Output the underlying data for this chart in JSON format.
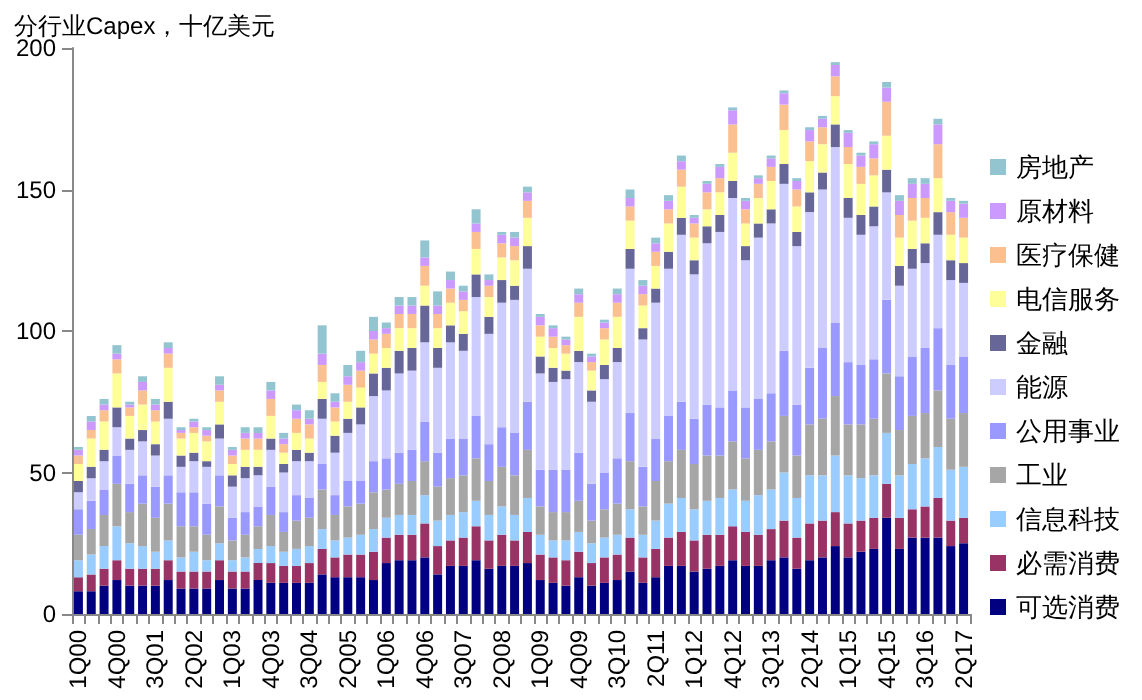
{
  "chart_data": {
    "type": "bar",
    "title": "分行业Capex，十亿美元",
    "stacked": true,
    "legend": "right",
    "ylim": [
      0,
      200
    ],
    "yticks": [
      0,
      50,
      100,
      150,
      200
    ],
    "categories": [
      "1Q00",
      null,
      null,
      "4Q00",
      null,
      null,
      "3Q01",
      null,
      null,
      "2Q02",
      null,
      null,
      "1Q03",
      null,
      null,
      "4Q03",
      null,
      null,
      "3Q04",
      null,
      null,
      "2Q05",
      null,
      null,
      "1Q06",
      null,
      null,
      "4Q06",
      null,
      null,
      "3Q07",
      null,
      null,
      "2Q08",
      null,
      null,
      "1Q09",
      null,
      null,
      "4Q09",
      null,
      null,
      "3Q10",
      null,
      null,
      "2Q11",
      null,
      null,
      "1Q12",
      null,
      null,
      "4Q12",
      null,
      null,
      "3Q13",
      null,
      null,
      "2Q14",
      null,
      null,
      "1Q15",
      null,
      null,
      "4Q15",
      null,
      null,
      "3Q16",
      null,
      null,
      "2Q17"
    ],
    "series": [
      {
        "name": "可选消费",
        "color": "#000080",
        "values": [
          8,
          8,
          10,
          12,
          10,
          10,
          10,
          12,
          9,
          9,
          9,
          12,
          9,
          9,
          12,
          11,
          11,
          11,
          11,
          14,
          13,
          13,
          13,
          12,
          18,
          19,
          19,
          20,
          14,
          17,
          17,
          19,
          16,
          17,
          17,
          18,
          12,
          11,
          10,
          13,
          10,
          11,
          12,
          15,
          11,
          13,
          17,
          17,
          15,
          16,
          17,
          19,
          17,
          17,
          19,
          20,
          16,
          19,
          20,
          24,
          20,
          22,
          23,
          34,
          23,
          27,
          27,
          27,
          24,
          25
        ]
      },
      {
        "name": "必需消费",
        "color": "#993366",
        "values": [
          5,
          6,
          6,
          7,
          6,
          6,
          6,
          7,
          6,
          6,
          6,
          7,
          6,
          6,
          6,
          7,
          6,
          6,
          7,
          9,
          7,
          8,
          8,
          10,
          9,
          9,
          9,
          12,
          10,
          9,
          10,
          12,
          10,
          11,
          9,
          11,
          9,
          9,
          9,
          9,
          8,
          9,
          9,
          12,
          9,
          10,
          10,
          12,
          11,
          12,
          11,
          12,
          12,
          11,
          11,
          13,
          11,
          13,
          13,
          12,
          12,
          11,
          11,
          12,
          11,
          10,
          11,
          14,
          9,
          9
        ]
      },
      {
        "name": "信息科技",
        "color": "#99ccff",
        "values": [
          6,
          7,
          8,
          12,
          9,
          8,
          6,
          7,
          5,
          7,
          4,
          6,
          4,
          5,
          5,
          6,
          5,
          6,
          6,
          7,
          6,
          6,
          7,
          8,
          7,
          7,
          7,
          10,
          9,
          9,
          9,
          9,
          9,
          10,
          9,
          12,
          7,
          6,
          7,
          7,
          7,
          7,
          7,
          10,
          8,
          10,
          12,
          12,
          11,
          12,
          13,
          13,
          11,
          14,
          14,
          17,
          14,
          17,
          16,
          20,
          17,
          15,
          15,
          18,
          15,
          16,
          17,
          18,
          18,
          18
        ]
      },
      {
        "name": "工业",
        "color": "#a6a6a6",
        "values": [
          9,
          9,
          11,
          15,
          11,
          15,
          12,
          13,
          11,
          9,
          9,
          13,
          7,
          8,
          8,
          11,
          7,
          10,
          10,
          14,
          9,
          11,
          11,
          13,
          10,
          11,
          12,
          12,
          12,
          13,
          13,
          15,
          12,
          14,
          14,
          17,
          10,
          10,
          10,
          11,
          8,
          10,
          11,
          17,
          10,
          14,
          15,
          17,
          16,
          16,
          15,
          17,
          15,
          16,
          17,
          20,
          15,
          18,
          20,
          21,
          18,
          19,
          20,
          21,
          16,
          17,
          16,
          20,
          18,
          19
        ]
      },
      {
        "name": "公用事业",
        "color": "#9999ff",
        "values": [
          9,
          10,
          9,
          10,
          10,
          10,
          11,
          10,
          12,
          12,
          11,
          11,
          8,
          8,
          7,
          10,
          7,
          9,
          7,
          9,
          7,
          9,
          8,
          11,
          11,
          11,
          11,
          14,
          12,
          14,
          13,
          15,
          13,
          14,
          15,
          17,
          13,
          15,
          15,
          17,
          13,
          13,
          16,
          17,
          14,
          15,
          16,
          17,
          16,
          18,
          17,
          18,
          18,
          18,
          17,
          23,
          18,
          20,
          25,
          26,
          22,
          21,
          21,
          26,
          19,
          21,
          23,
          22,
          19,
          20
        ]
      },
      {
        "name": "能源",
        "color": "#ccccff",
        "values": [
          6,
          8,
          10,
          10,
          12,
          12,
          11,
          20,
          9,
          11,
          13,
          13,
          11,
          12,
          11,
          13,
          14,
          12,
          13,
          16,
          15,
          17,
          20,
          23,
          24,
          28,
          28,
          28,
          30,
          34,
          31,
          42,
          39,
          44,
          47,
          47,
          34,
          31,
          32,
          32,
          29,
          33,
          34,
          51,
          45,
          48,
          52,
          59,
          51,
          57,
          62,
          68,
          52,
          57,
          60,
          59,
          56,
          55,
          56,
          62,
          51,
          46,
          47,
          38,
          32,
          31,
          30,
          33,
          30,
          26
        ]
      },
      {
        "name": "金融",
        "color": "#666699",
        "values": [
          4,
          4,
          4,
          7,
          4,
          4,
          4,
          6,
          4,
          3,
          2,
          5,
          4,
          4,
          3,
          4,
          3,
          4,
          3,
          7,
          6,
          5,
          6,
          8,
          8,
          8,
          8,
          13,
          7,
          6,
          6,
          8,
          6,
          8,
          5,
          8,
          6,
          5,
          3,
          4,
          4,
          5,
          5,
          7,
          4,
          5,
          6,
          6,
          5,
          6,
          6,
          6,
          5,
          5,
          5,
          7,
          5,
          7,
          6,
          8,
          7,
          7,
          7,
          8,
          7,
          7,
          7,
          8,
          7,
          7
        ]
      },
      {
        "name": "电信服务",
        "color": "#ffff99",
        "values": [
          6,
          10,
          10,
          12,
          8,
          9,
          8,
          12,
          6,
          7,
          7,
          8,
          4,
          6,
          6,
          8,
          4,
          6,
          5,
          6,
          5,
          6,
          7,
          7,
          7,
          8,
          7,
          7,
          7,
          8,
          8,
          9,
          7,
          8,
          9,
          10,
          7,
          7,
          6,
          12,
          7,
          9,
          11,
          10,
          8,
          8,
          10,
          11,
          8,
          6,
          8,
          10,
          8,
          9,
          10,
          12,
          9,
          11,
          10,
          10,
          12,
          11,
          11,
          12,
          10,
          10,
          9,
          12,
          9,
          9
        ]
      },
      {
        "name": "医疗保健",
        "color": "#fac090",
        "values": [
          3,
          3,
          4,
          5,
          3,
          5,
          4,
          5,
          2,
          2,
          2,
          4,
          3,
          4,
          4,
          6,
          3,
          5,
          5,
          6,
          5,
          6,
          6,
          5,
          5,
          5,
          5,
          7,
          5,
          5,
          4,
          6,
          4,
          5,
          5,
          6,
          4,
          4,
          3,
          5,
          3,
          4,
          5,
          5,
          4,
          5,
          5,
          6,
          5,
          6,
          5,
          10,
          5,
          5,
          5,
          9,
          6,
          7,
          6,
          7,
          6,
          6,
          6,
          12,
          8,
          8,
          7,
          12,
          8,
          7
        ]
      },
      {
        "name": "原材料",
        "color": "#cc99ff",
        "values": [
          2,
          3,
          2,
          2,
          1,
          3,
          2,
          2,
          1,
          2,
          2,
          2,
          2,
          2,
          2,
          3,
          2,
          3,
          2,
          4,
          2,
          3,
          3,
          3,
          2,
          3,
          3,
          3,
          3,
          3,
          3,
          3,
          2,
          3,
          3,
          3,
          3,
          3,
          2,
          3,
          2,
          2,
          3,
          3,
          3,
          3,
          3,
          3,
          2,
          3,
          4,
          5,
          3,
          2,
          3,
          4,
          3,
          4,
          3,
          4,
          5,
          4,
          5,
          5,
          5,
          5,
          5,
          7,
          4,
          5
        ]
      },
      {
        "name": "房地产",
        "color": "#92c5d0",
        "values": [
          1,
          2,
          2,
          3,
          1,
          2,
          2,
          2,
          1,
          1,
          1,
          3,
          1,
          2,
          2,
          3,
          2,
          2,
          3,
          10,
          3,
          4,
          4,
          5,
          2,
          3,
          3,
          6,
          5,
          3,
          2,
          5,
          2,
          1,
          2,
          2,
          1,
          1,
          1,
          2,
          1,
          1,
          2,
          3,
          2,
          2,
          2,
          2,
          1,
          1,
          1,
          1,
          1,
          1,
          1,
          1,
          1,
          1,
          1,
          1,
          1,
          1,
          1,
          2,
          2,
          2,
          2,
          2,
          1,
          1
        ]
      }
    ]
  }
}
